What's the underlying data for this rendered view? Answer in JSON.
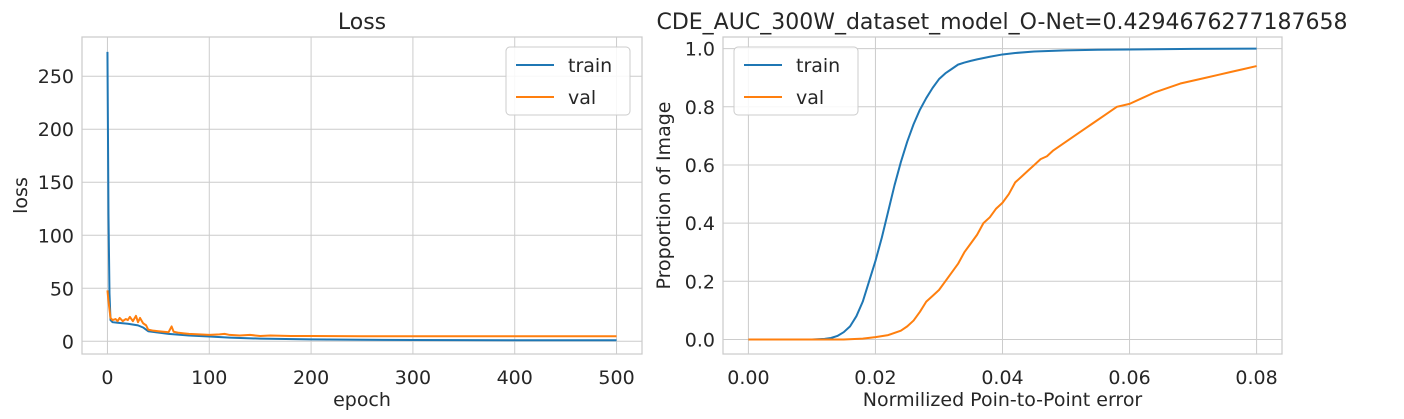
{
  "chart_data": [
    {
      "type": "line",
      "title": "Loss",
      "xlabel": "epoch",
      "ylabel": "loss",
      "xlim": [
        -25,
        525
      ],
      "ylim": [
        -12,
        287
      ],
      "xticks": [
        0,
        100,
        200,
        300,
        400,
        500
      ],
      "yticks": [
        0,
        50,
        100,
        150,
        200,
        250
      ],
      "xtick_labels": [
        "0",
        "100",
        "200",
        "300",
        "400",
        "500"
      ],
      "ytick_labels": [
        "0",
        "50",
        "100",
        "150",
        "200",
        "250"
      ],
      "grid": true,
      "legend": "top-right",
      "series": [
        {
          "name": "train",
          "color": "#1f77b4",
          "x": [
            0,
            1,
            2,
            3,
            5,
            10,
            20,
            30,
            35,
            40,
            60,
            80,
            100,
            120,
            150,
            200,
            250,
            300,
            350,
            400,
            450,
            500
          ],
          "y": [
            273,
            120,
            45,
            20,
            18,
            17.5,
            16.5,
            15,
            13,
            9.5,
            7,
            5.5,
            4.5,
            3.5,
            2.5,
            1.8,
            1.4,
            1.2,
            1.1,
            1.0,
            1.0,
            1.0
          ]
        },
        {
          "name": "val",
          "color": "#ff7f0e",
          "x": [
            0,
            1,
            2,
            3,
            5,
            8,
            10,
            12,
            15,
            18,
            20,
            22,
            25,
            28,
            30,
            32,
            35,
            38,
            40,
            45,
            50,
            55,
            60,
            63,
            65,
            70,
            75,
            80,
            90,
            100,
            110,
            115,
            120,
            130,
            140,
            150,
            160,
            180,
            200,
            250,
            300,
            350,
            400,
            450,
            500
          ],
          "y": [
            48,
            38,
            30,
            22,
            20,
            21,
            19,
            22,
            19,
            21,
            20,
            23,
            19,
            24,
            18,
            22,
            17,
            15,
            11,
            10,
            9.5,
            9,
            8.5,
            14,
            9,
            8,
            7.5,
            7,
            6.5,
            6,
            6.5,
            7,
            6,
            5.5,
            6,
            5,
            5.5,
            5,
            5,
            4.8,
            4.7,
            4.7,
            4.7,
            4.7,
            4.7
          ]
        }
      ]
    },
    {
      "type": "line",
      "title": "CDE_AUC_300W_dataset_model_O-Net=0.4294676277187658",
      "xlabel": "Normilized Poin-to-Point error",
      "ylabel": "Proportion of Image",
      "xlim": [
        -0.004,
        0.084
      ],
      "ylim": [
        -0.05,
        1.04
      ],
      "xticks": [
        0,
        0.02,
        0.04,
        0.06,
        0.08
      ],
      "yticks": [
        0,
        0.2,
        0.4,
        0.6,
        0.8,
        1.0
      ],
      "xtick_labels": [
        "0.00",
        "0.02",
        "0.04",
        "0.06",
        "0.08"
      ],
      "ytick_labels": [
        "0.0",
        "0.2",
        "0.4",
        "0.6",
        "0.8",
        "1.0"
      ],
      "grid": true,
      "legend": "top-left",
      "series": [
        {
          "name": "train",
          "color": "#1f77b4",
          "x": [
            0,
            0.01,
            0.012,
            0.013,
            0.014,
            0.015,
            0.016,
            0.017,
            0.018,
            0.019,
            0.02,
            0.021,
            0.022,
            0.023,
            0.024,
            0.025,
            0.026,
            0.027,
            0.028,
            0.029,
            0.03,
            0.031,
            0.032,
            0.033,
            0.034,
            0.035,
            0.036,
            0.038,
            0.04,
            0.042,
            0.045,
            0.05,
            0.055,
            0.06,
            0.07,
            0.08
          ],
          "y": [
            0,
            0,
            0.002,
            0.005,
            0.012,
            0.025,
            0.045,
            0.08,
            0.13,
            0.2,
            0.27,
            0.35,
            0.44,
            0.53,
            0.61,
            0.68,
            0.74,
            0.79,
            0.83,
            0.865,
            0.895,
            0.915,
            0.93,
            0.945,
            0.952,
            0.958,
            0.963,
            0.972,
            0.98,
            0.985,
            0.99,
            0.994,
            0.996,
            0.997,
            0.999,
            1.0
          ]
        },
        {
          "name": "val",
          "color": "#ff7f0e",
          "x": [
            0,
            0.015,
            0.018,
            0.02,
            0.022,
            0.024,
            0.025,
            0.026,
            0.027,
            0.028,
            0.029,
            0.03,
            0.031,
            0.032,
            0.033,
            0.034,
            0.035,
            0.036,
            0.037,
            0.038,
            0.039,
            0.04,
            0.041,
            0.042,
            0.043,
            0.044,
            0.045,
            0.046,
            0.047,
            0.048,
            0.05,
            0.052,
            0.054,
            0.056,
            0.058,
            0.06,
            0.062,
            0.064,
            0.066,
            0.068,
            0.07,
            0.072,
            0.074,
            0.076,
            0.078,
            0.08
          ],
          "y": [
            0,
            0,
            0.003,
            0.008,
            0.015,
            0.03,
            0.045,
            0.065,
            0.095,
            0.13,
            0.15,
            0.17,
            0.2,
            0.23,
            0.26,
            0.3,
            0.33,
            0.36,
            0.4,
            0.42,
            0.45,
            0.47,
            0.5,
            0.54,
            0.56,
            0.58,
            0.6,
            0.62,
            0.63,
            0.65,
            0.68,
            0.71,
            0.74,
            0.77,
            0.8,
            0.81,
            0.83,
            0.85,
            0.865,
            0.88,
            0.89,
            0.9,
            0.91,
            0.92,
            0.93,
            0.94
          ]
        }
      ]
    }
  ]
}
